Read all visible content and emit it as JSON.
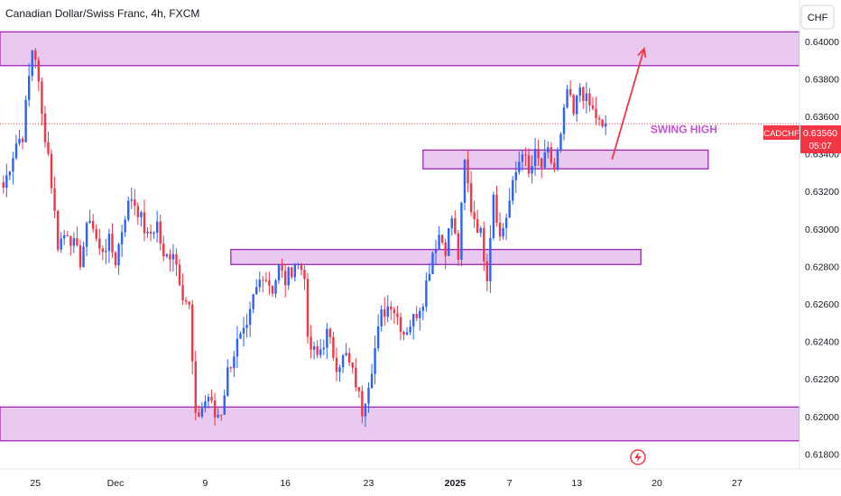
{
  "header": {
    "title": "Canadian Dollar/Swiss Franc, 4h, FXCM",
    "currency_button": "CHF"
  },
  "price_label": {
    "symbol": "CADCHF",
    "price": "0.63560",
    "countdown": "05:07",
    "color": "#f23645"
  },
  "annotation": "SWING HIGH",
  "colors": {
    "up": "#2962ff",
    "down": "#f23645",
    "zone_fill": "#e9c9ef",
    "zone_stroke": "#9c27b0",
    "annotation": "#c653d6",
    "arrow": "#f23645"
  },
  "chart_data": {
    "type": "candlestick",
    "y_axis": {
      "ticks": [
        "0.64000",
        "0.63800",
        "0.63600",
        "0.63400",
        "0.63200",
        "0.63000",
        "0.62800",
        "0.62600",
        "0.62400",
        "0.62200",
        "0.62000",
        "0.61800"
      ],
      "range": [
        0.6172,
        0.6422
      ]
    },
    "x_axis": {
      "ticks": [
        {
          "label": "25",
          "bar": 10
        },
        {
          "label": "Dec",
          "bar": 35
        },
        {
          "label": "9",
          "bar": 63
        },
        {
          "label": "16",
          "bar": 88
        },
        {
          "label": "23",
          "bar": 114
        },
        {
          "label": "2025",
          "bar": 141,
          "bold": true
        },
        {
          "label": "7",
          "bar": 158
        },
        {
          "label": "13",
          "bar": 179
        },
        {
          "label": "20",
          "bar": 204
        },
        {
          "label": "27",
          "bar": 229
        }
      ],
      "bar_count": 249
    },
    "current_price": 0.6356,
    "zones": [
      {
        "top": 0.6405,
        "bottom": 0.6387,
        "start_bar": 0,
        "end_bar": 249
      },
      {
        "top": 0.6342,
        "bottom": 0.6332,
        "start_bar": 131,
        "end_bar": 220
      },
      {
        "top": 0.6289,
        "bottom": 0.6281,
        "start_bar": 71,
        "end_bar": 199
      },
      {
        "top": 0.6205,
        "bottom": 0.6187,
        "start_bar": 0,
        "end_bar": 249
      }
    ],
    "arrow": {
      "from_bar": 190,
      "from_price": 0.6337,
      "to_bar": 200,
      "to_price": 0.6396
    },
    "anchors": [
      [
        0,
        0.6322
      ],
      [
        4,
        0.6346
      ],
      [
        6,
        0.635
      ],
      [
        9,
        0.6396
      ],
      [
        10,
        0.6392
      ],
      [
        12,
        0.636
      ],
      [
        14,
        0.634
      ],
      [
        17,
        0.6292
      ],
      [
        20,
        0.6299
      ],
      [
        24,
        0.6283
      ],
      [
        27,
        0.6307
      ],
      [
        30,
        0.6288
      ],
      [
        33,
        0.6293
      ],
      [
        35,
        0.6283
      ],
      [
        38,
        0.6308
      ],
      [
        40,
        0.6317
      ],
      [
        42,
        0.631
      ],
      [
        45,
        0.6295
      ],
      [
        48,
        0.6303
      ],
      [
        50,
        0.6283
      ],
      [
        53,
        0.6289
      ],
      [
        56,
        0.6266
      ],
      [
        58,
        0.6258
      ],
      [
        60,
        0.6198
      ],
      [
        62,
        0.6205
      ],
      [
        64,
        0.6211
      ],
      [
        66,
        0.62
      ],
      [
        68,
        0.6203
      ],
      [
        70,
        0.6224
      ],
      [
        73,
        0.6239
      ],
      [
        76,
        0.6245
      ],
      [
        78,
        0.6263
      ],
      [
        81,
        0.6277
      ],
      [
        84,
        0.6268
      ],
      [
        86,
        0.6279
      ],
      [
        88,
        0.6272
      ],
      [
        91,
        0.6282
      ],
      [
        94,
        0.6277
      ],
      [
        95,
        0.6238
      ],
      [
        98,
        0.6232
      ],
      [
        101,
        0.6244
      ],
      [
        104,
        0.6228
      ],
      [
        107,
        0.6232
      ],
      [
        110,
        0.6218
      ],
      [
        112,
        0.6203
      ],
      [
        115,
        0.6227
      ],
      [
        118,
        0.6254
      ],
      [
        121,
        0.6261
      ],
      [
        123,
        0.6253
      ],
      [
        125,
        0.6245
      ],
      [
        128,
        0.6252
      ],
      [
        131,
        0.6263
      ],
      [
        134,
        0.6288
      ],
      [
        136,
        0.6297
      ],
      [
        138,
        0.629
      ],
      [
        140,
        0.6306
      ],
      [
        142,
        0.6285
      ],
      [
        144,
        0.6335
      ],
      [
        146,
        0.6311
      ],
      [
        149,
        0.6297
      ],
      [
        151,
        0.6276
      ],
      [
        153,
        0.632
      ],
      [
        155,
        0.6295
      ],
      [
        157,
        0.6307
      ],
      [
        160,
        0.633
      ],
      [
        162,
        0.6343
      ],
      [
        164,
        0.6328
      ],
      [
        166,
        0.6339
      ],
      [
        168,
        0.6333
      ],
      [
        170,
        0.634
      ],
      [
        172,
        0.6332
      ],
      [
        174,
        0.6348
      ],
      [
        176,
        0.6374
      ],
      [
        178,
        0.636
      ],
      [
        180,
        0.6376
      ],
      [
        182,
        0.6368
      ],
      [
        185,
        0.636
      ],
      [
        187,
        0.6352
      ],
      [
        188,
        0.6356
      ]
    ]
  }
}
